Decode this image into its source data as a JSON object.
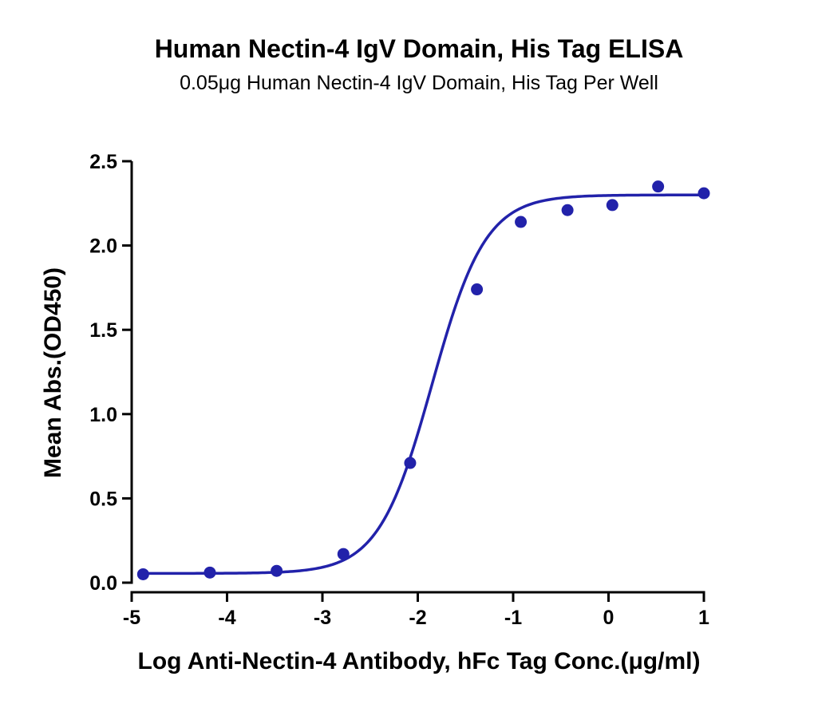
{
  "chart_data": {
    "type": "scatter",
    "title": "Human Nectin-4 IgV Domain, His Tag ELISA",
    "subtitle": "0.05μg Human Nectin-4 IgV Domain, His Tag Per Well",
    "xlabel": "Log Anti-Nectin-4 Antibody, hFc Tag Conc.(μg/ml)",
    "ylabel": "Mean Abs.(OD450)",
    "xlim": [
      -5,
      1
    ],
    "ylim": [
      0,
      2.5
    ],
    "xticks": [
      -5,
      -4,
      -3,
      -2,
      -1,
      0,
      1
    ],
    "yticks": [
      0,
      0.5,
      1,
      1.5,
      2,
      2.5
    ],
    "xtick_labels": [
      "-5",
      "-4",
      "-3",
      "-2",
      "-1",
      "0",
      "1"
    ],
    "ytick_labels": [
      "0.0",
      "0.5",
      "1.0",
      "1.5",
      "2.0",
      "2.5"
    ],
    "grid": false,
    "color": "#2222aa",
    "series": [
      {
        "x": [
          -4.88,
          -4.18,
          -3.48,
          -2.78,
          -2.08,
          -1.38,
          -0.92,
          -0.43,
          0.04,
          0.52,
          1.0
        ],
        "y": [
          0.05,
          0.06,
          0.07,
          0.17,
          0.71,
          1.74,
          2.14,
          2.21,
          2.24,
          2.35,
          2.31
        ]
      }
    ],
    "fit": {
      "model": "4PL",
      "bottom": 0.055,
      "top": 2.3,
      "log_ec50": -1.85,
      "hill_slope": 1.55
    }
  }
}
